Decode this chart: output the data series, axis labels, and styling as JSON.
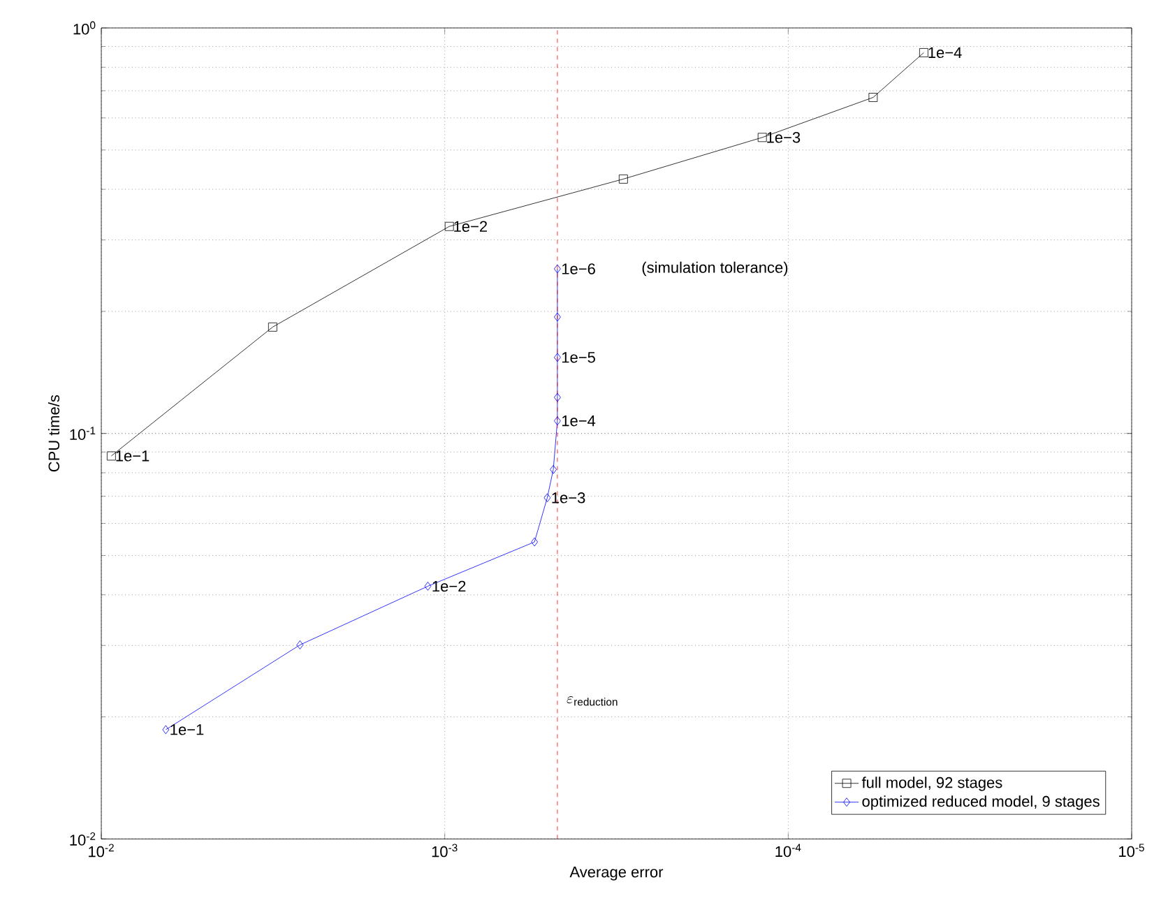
{
  "chart_data": {
    "type": "line",
    "xlabel": "Average error",
    "ylabel": "CPU time/s",
    "log": "xy",
    "grid": true,
    "legend": "bottom right",
    "xlim": [
      0.01,
      1e-05
    ],
    "ylim": [
      0.01,
      1
    ],
    "xticks": [
      {
        "value": 0.01,
        "label": "10$^{-2}$"
      },
      {
        "value": 0.001,
        "label": "10$^{-3}$"
      },
      {
        "value": 0.0001,
        "label": "10$^{-4}$"
      },
      {
        "value": 1e-05,
        "label": "10$^{-5}$"
      }
    ],
    "yticks": [
      {
        "value": 0.01,
        "label": "10$^{-2}$"
      },
      {
        "value": 0.1,
        "label": "10$^{-1}$"
      },
      {
        "value": 1,
        "label": "10$^{0}$"
      }
    ],
    "series": [
      {
        "name": "full model, 92 stages",
        "color": "#000000",
        "marker": "square",
        "x": [
          0.00935,
          0.00317,
          0.00097,
          0.000302,
          0.000119,
          5.66e-05,
          4.03e-05
        ],
        "values": [
          0.088,
          0.183,
          0.324,
          0.424,
          0.537,
          0.674,
          0.869
        ]
      },
      {
        "name": "optimized reduced model, 9 stages",
        "color": "#0000ff",
        "marker": "diamond",
        "x": [
          0.00649,
          0.00264,
          0.00112,
          0.000548,
          0.000503,
          0.000483,
          0.00047,
          0.00047,
          0.00047,
          0.00047,
          0.00047
        ],
        "values": [
          0.0186,
          0.0301,
          0.042,
          0.054,
          0.0694,
          0.0815,
          0.1074,
          0.1227,
          0.154,
          0.1937,
          0.2546
        ]
      }
    ],
    "ref_lines": [
      {
        "axis": "x",
        "value": 0.00047,
        "label": "\\varepsilon_{\\mathrm{reduction}}",
        "color": "#ff0000",
        "line_style": "dashed"
      }
    ],
    "annotations": [
      {
        "text": "1e−1",
        "x": 0.00935,
        "y": 0.088
      },
      {
        "text": "1e−2",
        "x": 0.00097,
        "y": 0.324
      },
      {
        "text": "1e−3",
        "x": 0.000119,
        "y": 0.537
      },
      {
        "text": "1e−4",
        "x": 4.03e-05,
        "y": 0.869
      },
      {
        "text": "1e−1",
        "x": 0.00649,
        "y": 0.0186
      },
      {
        "text": "1e−2",
        "x": 0.00112,
        "y": 0.042
      },
      {
        "text": "1e−3",
        "x": 0.000503,
        "y": 0.0694
      },
      {
        "text": "1e−4",
        "x": 0.00047,
        "y": 0.1074
      },
      {
        "text": "1e−5",
        "x": 0.00047,
        "y": 0.154
      },
      {
        "text": "1e−6",
        "x": 0.00047,
        "y": 0.2546
      },
      "(simulation tolerance)"
    ]
  }
}
